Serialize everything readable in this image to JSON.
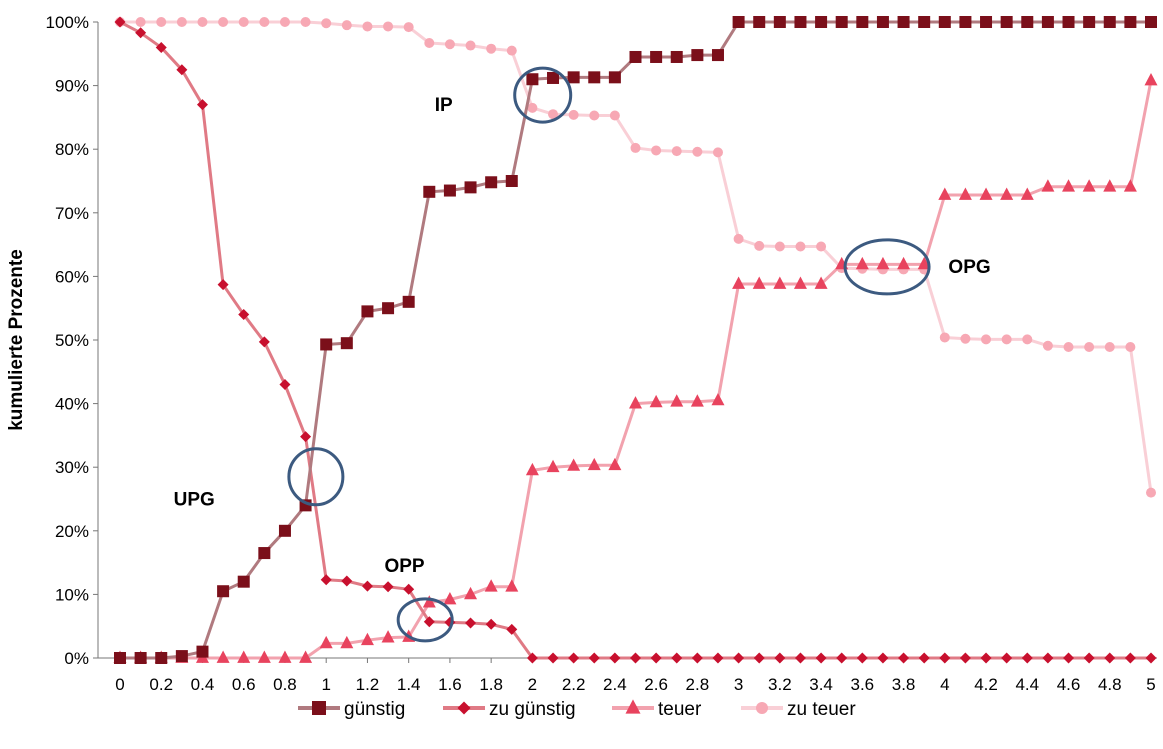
{
  "chart_data": {
    "type": "line",
    "title": "",
    "xlabel": "",
    "ylabel": "kumulierte Prozente",
    "xlim": [
      0,
      5
    ],
    "ylim": [
      0,
      100
    ],
    "x_ticks": [
      "0",
      "0.2",
      "0.4",
      "0.6",
      "0.8",
      "1",
      "1.2",
      "1.4",
      "1.6",
      "1.8",
      "2",
      "2.2",
      "2.4",
      "2.6",
      "2.8",
      "3",
      "3.2",
      "3.4",
      "3.6",
      "3.8",
      "4",
      "4.2",
      "4.4",
      "4.6",
      "4.8",
      "5"
    ],
    "y_ticks": [
      "0%",
      "10%",
      "20%",
      "30%",
      "40%",
      "50%",
      "60%",
      "70%",
      "80%",
      "90%",
      "100%"
    ],
    "grid": false,
    "legend_position": "bottom",
    "x": [
      0,
      0.1,
      0.2,
      0.3,
      0.4,
      0.5,
      0.6,
      0.7,
      0.8,
      0.9,
      1.0,
      1.1,
      1.2,
      1.3,
      1.4,
      1.5,
      1.6,
      1.7,
      1.8,
      1.9,
      2.0,
      2.1,
      2.2,
      2.3,
      2.4,
      2.5,
      2.6,
      2.7,
      2.8,
      2.9,
      3.0,
      3.1,
      3.2,
      3.3,
      3.4,
      3.5,
      3.6,
      3.7,
      3.8,
      3.9,
      4.0,
      4.1,
      4.2,
      4.3,
      4.4,
      4.5,
      4.6,
      4.7,
      4.8,
      4.9,
      5.0
    ],
    "series": [
      {
        "name": "günstig",
        "color": "#7b0f1a",
        "line_color": "#b07a7f",
        "marker": "square",
        "values": [
          0,
          0,
          0,
          0.3,
          1,
          10.5,
          12,
          16.5,
          20,
          24,
          49.3,
          49.5,
          54.5,
          55,
          56,
          73.3,
          73.5,
          74,
          74.8,
          75,
          91,
          91.2,
          91.3,
          91.3,
          91.3,
          94.5,
          94.5,
          94.5,
          94.8,
          94.8,
          100,
          100,
          100,
          100,
          100,
          100,
          100,
          100,
          100,
          100,
          100,
          100,
          100,
          100,
          100,
          100,
          100,
          100,
          100,
          100,
          100
        ]
      },
      {
        "name": "zu günstig",
        "color": "#c8102e",
        "line_color": "#e07a85",
        "marker": "diamond",
        "values": [
          100,
          98.3,
          96,
          92.5,
          87,
          58.7,
          54,
          49.7,
          43,
          34.8,
          12.3,
          12.1,
          11.3,
          11.2,
          10.8,
          5.7,
          5.6,
          5.5,
          5.3,
          4.5,
          0,
          0,
          0,
          0,
          0,
          0,
          0,
          0,
          0,
          0,
          0,
          0,
          0,
          0,
          0,
          0,
          0,
          0,
          0,
          0,
          0,
          0,
          0,
          0,
          0,
          0,
          0,
          0,
          0,
          0,
          0
        ]
      },
      {
        "name": "teuer",
        "color": "#e8435e",
        "line_color": "#f2a2ae",
        "marker": "triangle",
        "values": [
          0,
          0,
          0,
          0,
          0,
          0,
          0,
          0,
          0,
          0,
          2.3,
          2.3,
          2.8,
          3.2,
          3.3,
          8.7,
          9.2,
          10,
          11.2,
          11.2,
          29.5,
          30,
          30.2,
          30.3,
          30.3,
          40,
          40.2,
          40.3,
          40.3,
          40.5,
          58.8,
          58.8,
          58.8,
          58.8,
          58.8,
          61.9,
          61.9,
          61.9,
          61.9,
          61.9,
          72.8,
          72.8,
          72.8,
          72.8,
          72.8,
          74.1,
          74.1,
          74.1,
          74.1,
          74.1,
          90.8
        ]
      },
      {
        "name": "zu teuer",
        "color": "#f7a8b4",
        "line_color": "#f9cfd6",
        "marker": "circle",
        "values": [
          100,
          100,
          100,
          100,
          100,
          100,
          100,
          100,
          100,
          100,
          99.8,
          99.5,
          99.3,
          99.3,
          99.2,
          96.7,
          96.5,
          96.3,
          95.8,
          95.5,
          86.5,
          85.5,
          85.4,
          85.3,
          85.3,
          80.2,
          79.8,
          79.7,
          79.6,
          79.5,
          65.9,
          64.8,
          64.7,
          64.7,
          64.7,
          61.3,
          61.2,
          61.1,
          61.1,
          61.1,
          50.4,
          50.2,
          50.1,
          50.1,
          50.1,
          49.1,
          48.9,
          48.9,
          48.9,
          48.9,
          26
        ]
      }
    ],
    "annotations": [
      {
        "label": "IP",
        "x": 2.05,
        "y": 88.5
      },
      {
        "label": "UPG",
        "x": 0.95,
        "y": 28.5
      },
      {
        "label": "OPP",
        "x": 1.48,
        "y": 6
      },
      {
        "label": "OPG",
        "x": 3.72,
        "y": 61.5
      }
    ],
    "annotation_text": [
      {
        "label": "IP",
        "x": 1.57,
        "y": 86
      },
      {
        "label": "UPG",
        "x": 0.36,
        "y": 24
      },
      {
        "label": "OPP",
        "x": 1.38,
        "y": 13.5
      },
      {
        "label": "OPG",
        "x": 4.12,
        "y": 60.5
      }
    ],
    "circle_color": "#3c5a80"
  }
}
